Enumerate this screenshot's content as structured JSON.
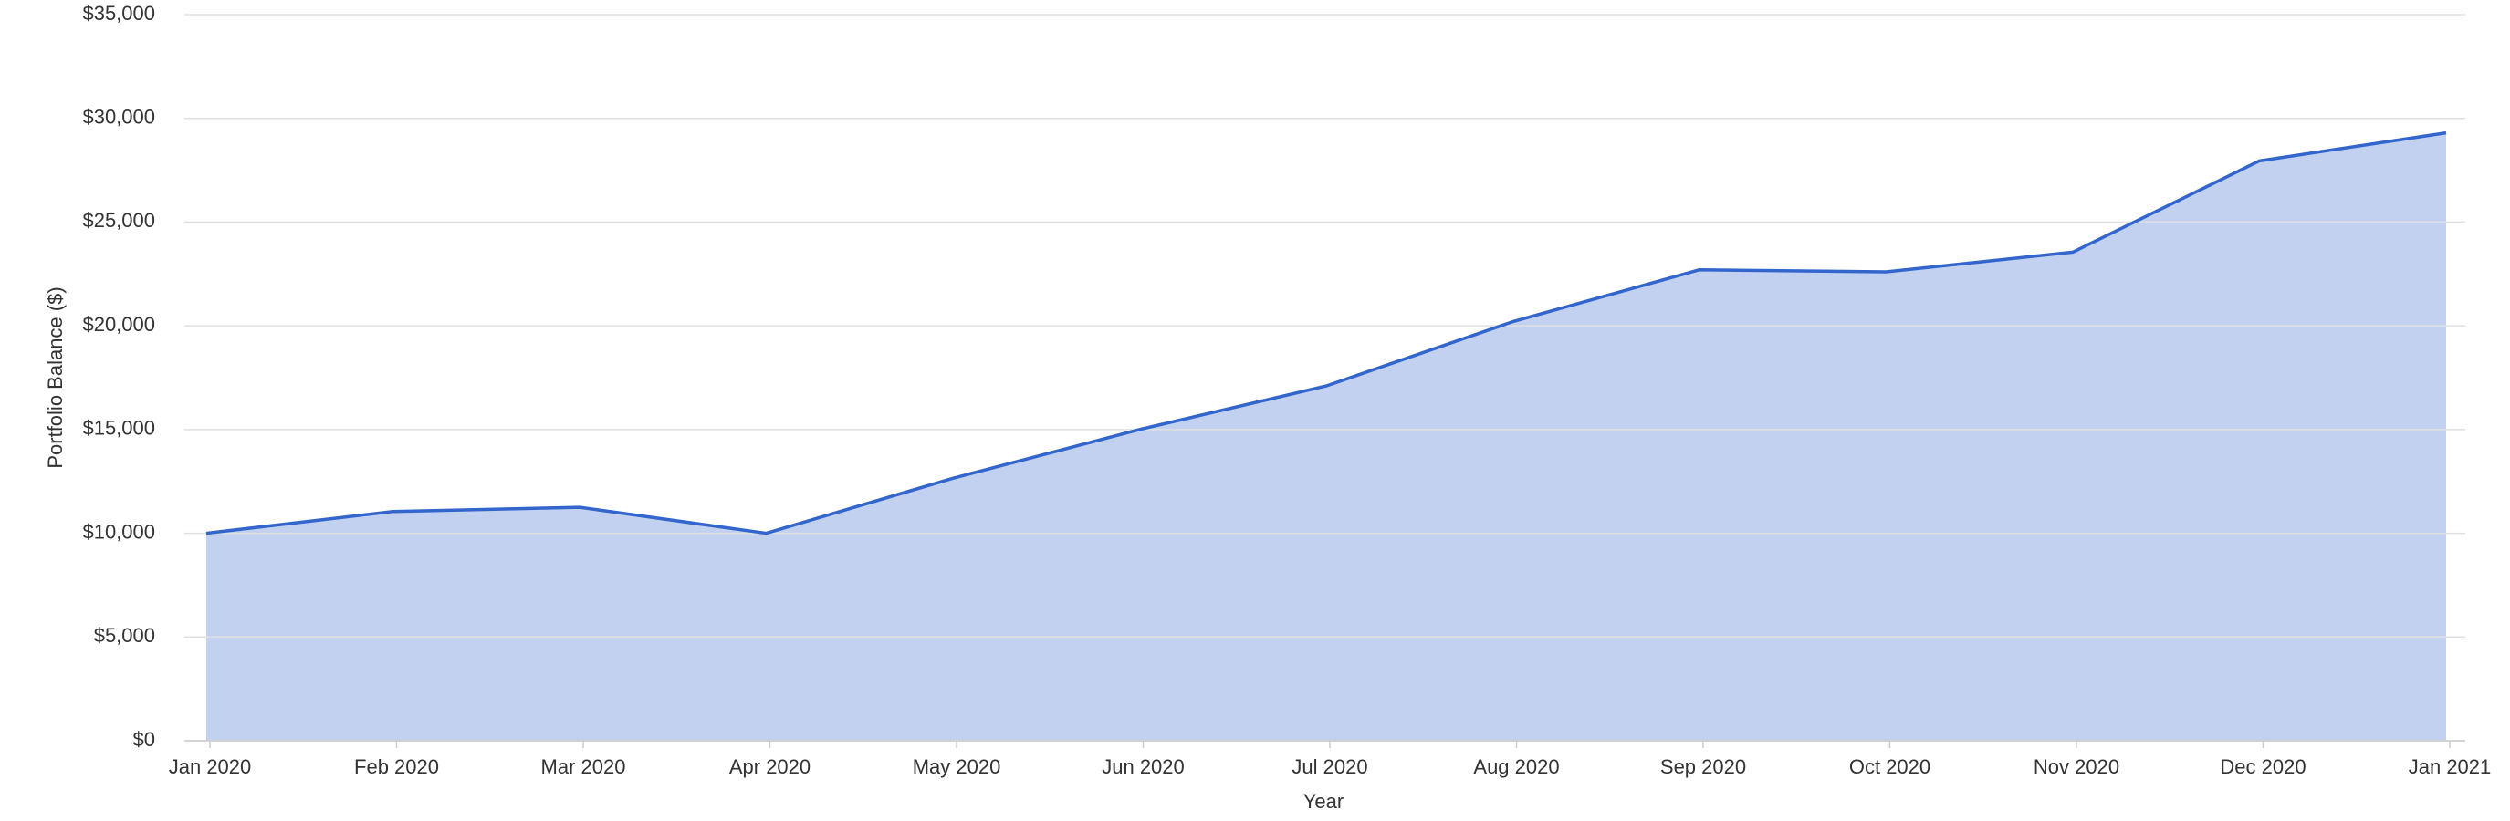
{
  "chart_data": {
    "type": "area",
    "x_label": "Year",
    "y_label": "Portfolio Balance ($)",
    "categories": [
      "Jan 2020",
      "Feb 2020",
      "Mar 2020",
      "Apr 2020",
      "May 2020",
      "Jun 2020",
      "Jul 2020",
      "Aug 2020",
      "Sep 2020",
      "Oct 2020",
      "Nov 2020",
      "Dec 2020",
      "Jan 2021"
    ],
    "values": [
      10000,
      11050,
      11250,
      10000,
      12650,
      15000,
      17100,
      20200,
      22700,
      22600,
      23550,
      27950,
      29300
    ],
    "color": "#3366cc",
    "fill_color": "#c2d1f0",
    "ylim": [
      0,
      35000
    ],
    "yticks": [
      {
        "value": 0,
        "label": "$0"
      },
      {
        "value": 5000,
        "label": "$5,000"
      },
      {
        "value": 10000,
        "label": "$10,000"
      },
      {
        "value": 15000,
        "label": "$15,000"
      },
      {
        "value": 20000,
        "label": "$20,000"
      },
      {
        "value": 25000,
        "label": "$25,000"
      },
      {
        "value": 30000,
        "label": "$30,000"
      },
      {
        "value": 35000,
        "label": "$35,000"
      }
    ],
    "grid": true
  }
}
